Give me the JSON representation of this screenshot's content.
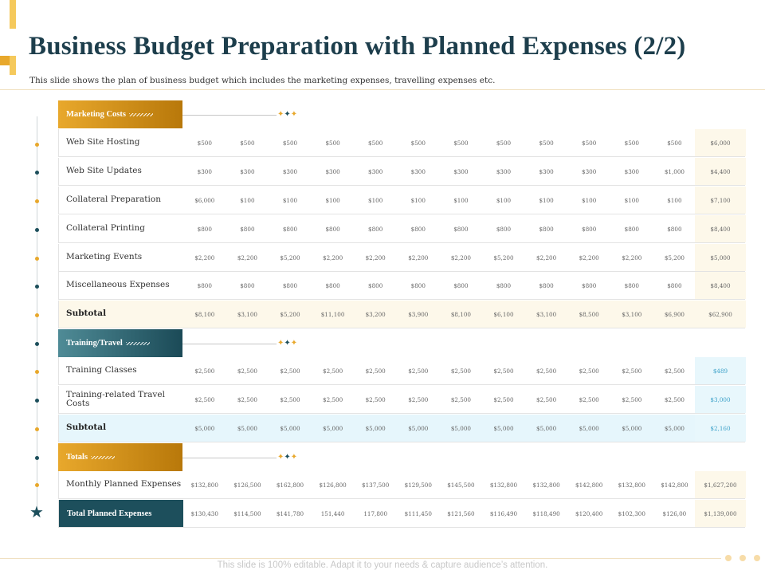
{
  "header": {
    "title": "Business Budget Preparation with Planned Expenses (2/2)",
    "subtitle": "This slide shows the plan of business budget which includes the marketing expenses, travelling expenses etc."
  },
  "colors": {
    "gold": "#e8a82c",
    "teal": "#1d4f5c",
    "title": "#1d3e4c"
  },
  "sections": {
    "marketing": "Marketing Costs",
    "training": "Training/Travel",
    "totals": "Totals"
  },
  "rows": [
    {
      "label": "Web Site Hosting",
      "values": [
        "$500",
        "$500",
        "$500",
        "$500",
        "$500",
        "$500",
        "$500",
        "$500",
        "$500",
        "$500",
        "$500",
        "$500"
      ],
      "total": "$6,000"
    },
    {
      "label": "Web Site Updates",
      "values": [
        "$300",
        "$300",
        "$300",
        "$300",
        "$300",
        "$300",
        "$300",
        "$300",
        "$300",
        "$300",
        "$300",
        "$1,000"
      ],
      "total": "$4,400"
    },
    {
      "label": "Collateral Preparation",
      "values": [
        "$6,000",
        "$100",
        "$100",
        "$100",
        "$100",
        "$100",
        "$100",
        "$100",
        "$100",
        "$100",
        "$100",
        "$100"
      ],
      "total": "$7,100"
    },
    {
      "label": "Collateral Printing",
      "values": [
        "$800",
        "$800",
        "$800",
        "$800",
        "$800",
        "$800",
        "$800",
        "$800",
        "$800",
        "$800",
        "$800",
        "$800"
      ],
      "total": "$8,400"
    },
    {
      "label": "Marketing Events",
      "values": [
        "$2,200",
        "$2,200",
        "$5,200",
        "$2,200",
        "$2,200",
        "$2,200",
        "$2,200",
        "$5,200",
        "$2,200",
        "$2,200",
        "$2,200",
        "$5,200"
      ],
      "total": "$5,000"
    },
    {
      "label": "Miscellaneous Expenses",
      "values": [
        "$800",
        "$800",
        "$800",
        "$800",
        "$800",
        "$800",
        "$800",
        "$800",
        "$800",
        "$800",
        "$800",
        "$800"
      ],
      "total": "$8,400"
    },
    {
      "label": "Subtotal",
      "values": [
        "$8,100",
        "$3,100",
        "$5,200",
        "$11,100",
        "$3,200",
        "$3,900",
        "$8,100",
        "$6,100",
        "$3,100",
        "$8,500",
        "$3,100",
        "$6,900"
      ],
      "total": "$62,900"
    },
    {
      "label": "Training Classes",
      "values": [
        "$2,500",
        "$2,500",
        "$2,500",
        "$2,500",
        "$2,500",
        "$2,500",
        "$2,500",
        "$2,500",
        "$2,500",
        "$2,500",
        "$2,500",
        "$2,500"
      ],
      "total": "$489"
    },
    {
      "label": "Training-related Travel Costs",
      "values": [
        "$2,500",
        "$2,500",
        "$2,500",
        "$2,500",
        "$2,500",
        "$2,500",
        "$2,500",
        "$2,500",
        "$2,500",
        "$2,500",
        "$2,500",
        "$2,500"
      ],
      "total": "$3,000"
    },
    {
      "label": "Subtotal",
      "values": [
        "$5,000",
        "$5,000",
        "$5,000",
        "$5,000",
        "$5,000",
        "$5,000",
        "$5,000",
        "$5,000",
        "$5,000",
        "$5,000",
        "$5,000",
        "$5,000"
      ],
      "total": "$2,160"
    },
    {
      "label": "Monthly Planned Expenses",
      "values": [
        "$132,800",
        "$126,500",
        "$162,800",
        "$126,800",
        "$137,500",
        "$129,500",
        "$145,500",
        "$132,800",
        "$132,800",
        "$142,800",
        "$132,800",
        "$142,800"
      ],
      "total": "$1,627,200"
    },
    {
      "label": "Total Planned Expenses",
      "values": [
        "$130,430",
        "$114,500",
        "$141,780",
        "151,440",
        "117,800",
        "$111,450",
        "$121,560",
        "$116,490",
        "$118,490",
        "$120,400",
        "$102,300",
        "$126,00"
      ],
      "total": "$1,139,000"
    }
  ],
  "footer": {
    "text": "This slide is 100% editable. Adapt it to your needs & capture audience’s attention."
  }
}
